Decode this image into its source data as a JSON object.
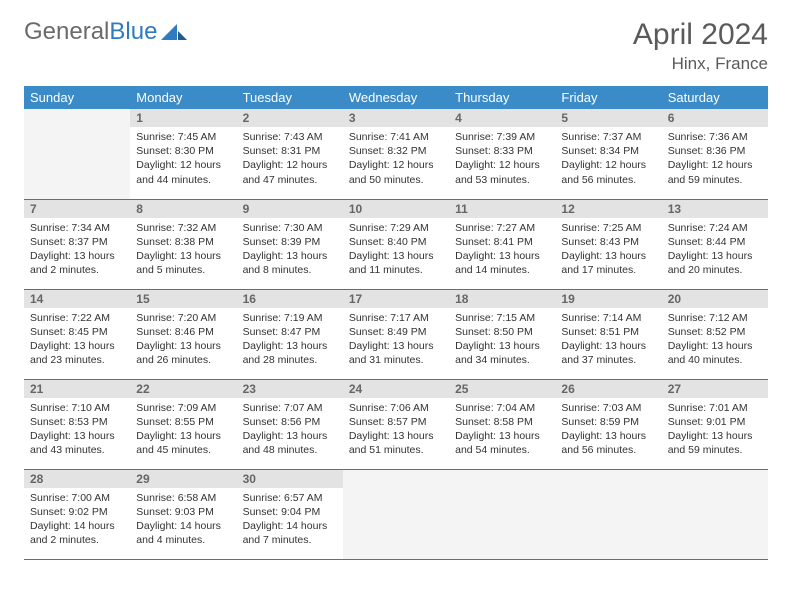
{
  "brand": {
    "part1": "General",
    "part2": "Blue"
  },
  "title": {
    "month": "April 2024",
    "location": "Hinx, France"
  },
  "colors": {
    "header_bg": "#3b8bc8",
    "header_fg": "#ffffff",
    "daynum_bg": "#e3e3e3",
    "daynum_fg": "#666666",
    "rule": "#2f7bbf",
    "logo_gray": "#6a6a6a",
    "logo_blue": "#2f7bbf"
  },
  "weekdays": [
    "Sunday",
    "Monday",
    "Tuesday",
    "Wednesday",
    "Thursday",
    "Friday",
    "Saturday"
  ],
  "weeks": [
    [
      {
        "blank": true
      },
      {
        "day": 1,
        "sunrise": "7:45 AM",
        "sunset": "8:30 PM",
        "daylight": "12 hours and 44 minutes."
      },
      {
        "day": 2,
        "sunrise": "7:43 AM",
        "sunset": "8:31 PM",
        "daylight": "12 hours and 47 minutes."
      },
      {
        "day": 3,
        "sunrise": "7:41 AM",
        "sunset": "8:32 PM",
        "daylight": "12 hours and 50 minutes."
      },
      {
        "day": 4,
        "sunrise": "7:39 AM",
        "sunset": "8:33 PM",
        "daylight": "12 hours and 53 minutes."
      },
      {
        "day": 5,
        "sunrise": "7:37 AM",
        "sunset": "8:34 PM",
        "daylight": "12 hours and 56 minutes."
      },
      {
        "day": 6,
        "sunrise": "7:36 AM",
        "sunset": "8:36 PM",
        "daylight": "12 hours and 59 minutes."
      }
    ],
    [
      {
        "day": 7,
        "sunrise": "7:34 AM",
        "sunset": "8:37 PM",
        "daylight": "13 hours and 2 minutes."
      },
      {
        "day": 8,
        "sunrise": "7:32 AM",
        "sunset": "8:38 PM",
        "daylight": "13 hours and 5 minutes."
      },
      {
        "day": 9,
        "sunrise": "7:30 AM",
        "sunset": "8:39 PM",
        "daylight": "13 hours and 8 minutes."
      },
      {
        "day": 10,
        "sunrise": "7:29 AM",
        "sunset": "8:40 PM",
        "daylight": "13 hours and 11 minutes."
      },
      {
        "day": 11,
        "sunrise": "7:27 AM",
        "sunset": "8:41 PM",
        "daylight": "13 hours and 14 minutes."
      },
      {
        "day": 12,
        "sunrise": "7:25 AM",
        "sunset": "8:43 PM",
        "daylight": "13 hours and 17 minutes."
      },
      {
        "day": 13,
        "sunrise": "7:24 AM",
        "sunset": "8:44 PM",
        "daylight": "13 hours and 20 minutes."
      }
    ],
    [
      {
        "day": 14,
        "sunrise": "7:22 AM",
        "sunset": "8:45 PM",
        "daylight": "13 hours and 23 minutes."
      },
      {
        "day": 15,
        "sunrise": "7:20 AM",
        "sunset": "8:46 PM",
        "daylight": "13 hours and 26 minutes."
      },
      {
        "day": 16,
        "sunrise": "7:19 AM",
        "sunset": "8:47 PM",
        "daylight": "13 hours and 28 minutes."
      },
      {
        "day": 17,
        "sunrise": "7:17 AM",
        "sunset": "8:49 PM",
        "daylight": "13 hours and 31 minutes."
      },
      {
        "day": 18,
        "sunrise": "7:15 AM",
        "sunset": "8:50 PM",
        "daylight": "13 hours and 34 minutes."
      },
      {
        "day": 19,
        "sunrise": "7:14 AM",
        "sunset": "8:51 PM",
        "daylight": "13 hours and 37 minutes."
      },
      {
        "day": 20,
        "sunrise": "7:12 AM",
        "sunset": "8:52 PM",
        "daylight": "13 hours and 40 minutes."
      }
    ],
    [
      {
        "day": 21,
        "sunrise": "7:10 AM",
        "sunset": "8:53 PM",
        "daylight": "13 hours and 43 minutes."
      },
      {
        "day": 22,
        "sunrise": "7:09 AM",
        "sunset": "8:55 PM",
        "daylight": "13 hours and 45 minutes."
      },
      {
        "day": 23,
        "sunrise": "7:07 AM",
        "sunset": "8:56 PM",
        "daylight": "13 hours and 48 minutes."
      },
      {
        "day": 24,
        "sunrise": "7:06 AM",
        "sunset": "8:57 PM",
        "daylight": "13 hours and 51 minutes."
      },
      {
        "day": 25,
        "sunrise": "7:04 AM",
        "sunset": "8:58 PM",
        "daylight": "13 hours and 54 minutes."
      },
      {
        "day": 26,
        "sunrise": "7:03 AM",
        "sunset": "8:59 PM",
        "daylight": "13 hours and 56 minutes."
      },
      {
        "day": 27,
        "sunrise": "7:01 AM",
        "sunset": "9:01 PM",
        "daylight": "13 hours and 59 minutes."
      }
    ],
    [
      {
        "day": 28,
        "sunrise": "7:00 AM",
        "sunset": "9:02 PM",
        "daylight": "14 hours and 2 minutes."
      },
      {
        "day": 29,
        "sunrise": "6:58 AM",
        "sunset": "9:03 PM",
        "daylight": "14 hours and 4 minutes."
      },
      {
        "day": 30,
        "sunrise": "6:57 AM",
        "sunset": "9:04 PM",
        "daylight": "14 hours and 7 minutes."
      },
      {
        "blank": true
      },
      {
        "blank": true
      },
      {
        "blank": true
      },
      {
        "blank": true
      }
    ]
  ],
  "labels": {
    "sunrise": "Sunrise:",
    "sunset": "Sunset:",
    "daylight": "Daylight:"
  }
}
